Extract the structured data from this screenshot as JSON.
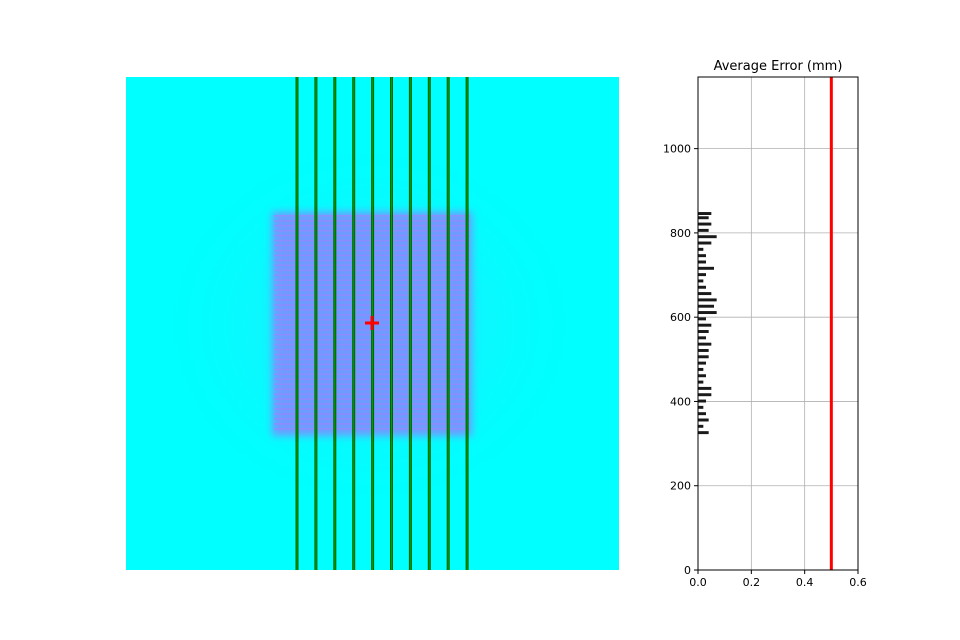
{
  "colors": {
    "background": "#00ffff",
    "field": "#6e9bff",
    "field_stripe": "#9a86ff",
    "line_outer": "#006400",
    "line_inner": "#00a000",
    "marker": "#ff0000",
    "threshold": "#ff0000",
    "bars": "#1a1a1a",
    "grid": "#b0b0b0"
  },
  "chart_data": [
    {
      "type": "heatmap",
      "title": "",
      "axis": "off",
      "vertical_line_count": 10,
      "horizontal_band_count": 44,
      "marker": {
        "symbol": "+",
        "label": "center"
      }
    },
    {
      "type": "bar",
      "orientation": "horizontal",
      "title": "Average Error (mm)",
      "xlabel": "",
      "ylabel": "",
      "xlim": [
        0,
        0.6
      ],
      "ylim": [
        0,
        1170
      ],
      "xticks": [
        "0.0",
        "0.2",
        "0.4",
        "0.6"
      ],
      "yticks": [
        "0",
        "200",
        "400",
        "600",
        "800",
        "1000"
      ],
      "grid": true,
      "threshold_x": 0.5,
      "bar_height": 7,
      "y": [
        326,
        341,
        356,
        371,
        386,
        401,
        416,
        431,
        446,
        461,
        476,
        491,
        506,
        521,
        536,
        551,
        566,
        581,
        596,
        611,
        626,
        641,
        656,
        671,
        686,
        701,
        716,
        731,
        746,
        761,
        776,
        791,
        806,
        821,
        836,
        846
      ],
      "values": [
        0.04,
        0.02,
        0.04,
        0.03,
        0.02,
        0.03,
        0.05,
        0.05,
        0.02,
        0.03,
        0.02,
        0.03,
        0.04,
        0.04,
        0.05,
        0.03,
        0.04,
        0.05,
        0.03,
        0.07,
        0.06,
        0.07,
        0.05,
        0.03,
        0.02,
        0.03,
        0.06,
        0.03,
        0.03,
        0.02,
        0.05,
        0.07,
        0.04,
        0.05,
        0.04,
        0.05
      ]
    }
  ]
}
